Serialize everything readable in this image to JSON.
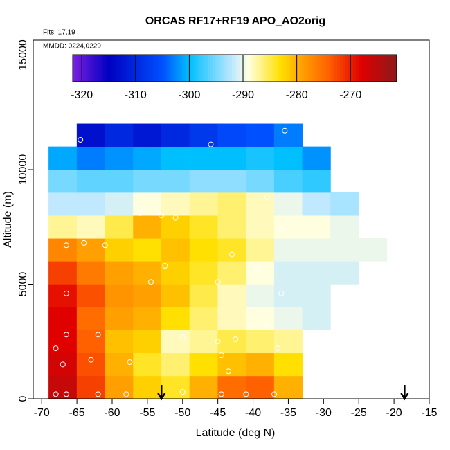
{
  "chart_data": {
    "type": "heatmap",
    "title": "ORCAS RF17+RF19 APO_AO2orig",
    "subtitle": "Flts: 17,19",
    "annotation": "MMDD: 0224,0229",
    "x_label": "Latitude (deg N)",
    "y_label": "Altitude (m)",
    "xlim": [
      -71.2,
      -15
    ],
    "ylim": [
      0,
      15650
    ],
    "xticks": [
      -70,
      -65,
      -60,
      -55,
      -50,
      -45,
      -40,
      -35,
      -30,
      -25,
      -20,
      -15
    ],
    "yticks": [
      0,
      5000,
      10000,
      15000
    ],
    "x": [
      -67,
      -63,
      -59,
      -55,
      -51,
      -47,
      -43,
      -39,
      -35,
      -31,
      -27,
      -23,
      -19
    ],
    "y": [
      500,
      1500,
      2500,
      3500,
      4500,
      5500,
      6500,
      7500,
      8500,
      9500,
      10500,
      11500
    ],
    "z": [
      [
        -266,
        -272,
        -279,
        -282,
        -284,
        -280,
        -275,
        -274,
        -280,
        null,
        null,
        null,
        null
      ],
      [
        -267,
        -273,
        -280,
        -284,
        -286,
        -283,
        -281,
        -280,
        -283,
        null,
        null,
        null,
        null
      ],
      [
        -268,
        -274,
        -281,
        -282,
        -288,
        -287,
        -285,
        -286,
        -287,
        null,
        null,
        null,
        null
      ],
      [
        -268,
        -275,
        -279,
        -280,
        -283,
        -286,
        -288,
        -289,
        -290,
        -291,
        null,
        null,
        null
      ],
      [
        -269,
        -273,
        -278,
        -279,
        -281,
        -285,
        -288,
        -290,
        -291,
        -291,
        null,
        null,
        null
      ],
      [
        -272,
        -276,
        -279,
        -280,
        -282,
        -284,
        -286,
        -289,
        -291,
        -291,
        -291,
        null,
        null
      ],
      [
        -277,
        -279,
        -282,
        -283,
        -281,
        -283,
        -284,
        -287,
        -290,
        -290,
        -290,
        -290,
        null
      ],
      [
        -287,
        -288,
        -285,
        -280,
        -282,
        -284,
        -286,
        -288,
        -289,
        -289,
        -290,
        null,
        null
      ],
      [
        -292,
        -292,
        -291,
        -289,
        -288,
        -287,
        -286,
        -288,
        -290,
        -292,
        -293,
        null,
        null
      ],
      [
        -295,
        -296,
        -296,
        -295,
        -295,
        -294,
        -294,
        -295,
        -297,
        -298,
        null,
        null,
        null
      ],
      [
        -301,
        -303,
        -302,
        -301,
        -300,
        -300,
        -300,
        -299,
        -300,
        -302,
        null,
        null,
        null
      ],
      [
        null,
        -313,
        -310,
        -312,
        -310,
        -308,
        -306,
        -305,
        -303,
        null,
        null,
        null,
        null
      ]
    ],
    "clim": [
      -321.7,
      -261.4
    ],
    "cticks": [
      -320,
      -310,
      -300,
      -290,
      -280,
      -270
    ],
    "colorscale": {
      "values": [
        -321.7,
        -315,
        -305,
        -300,
        -292,
        -289,
        -283,
        -279,
        -274,
        -268,
        -261.4
      ],
      "colors": [
        "#7b1fe0",
        "#0000c0",
        "#0050ff",
        "#00bfff",
        "#c0e8ff",
        "#ffffe0",
        "#ffe000",
        "#ffa000",
        "#ff6000",
        "#e00000",
        "#8b1a1a"
      ]
    },
    "points": {
      "x": [
        -64.5,
        -46,
        -35.5,
        -38,
        -56,
        -53,
        -51,
        -36,
        -43,
        -61,
        -66.5,
        -64,
        -52.5,
        -39.5,
        -54.5,
        -45,
        -66.5,
        -36,
        -40,
        -38,
        -50,
        -66.5,
        -62,
        -45,
        -42.5,
        -36.5,
        -68,
        -57.5,
        -63,
        -44.5,
        -67,
        -43.5,
        -50,
        -68,
        -66.5,
        -62,
        -58,
        -44.5,
        -41,
        -37
      ],
      "y": [
        11300,
        11100,
        11700,
        8800,
        8100,
        8000,
        7900,
        7400,
        6300,
        6700,
        6700,
        6800,
        5800,
        5700,
        5100,
        5100,
        4600,
        4600,
        3200,
        3200,
        2700,
        2800,
        2800,
        2500,
        2600,
        2200,
        2200,
        1600,
        1700,
        1900,
        1500,
        1200,
        300,
        200,
        200,
        200,
        200,
        200,
        200,
        200
      ]
    },
    "arrows_x": [
      -53,
      -18.5
    ]
  }
}
